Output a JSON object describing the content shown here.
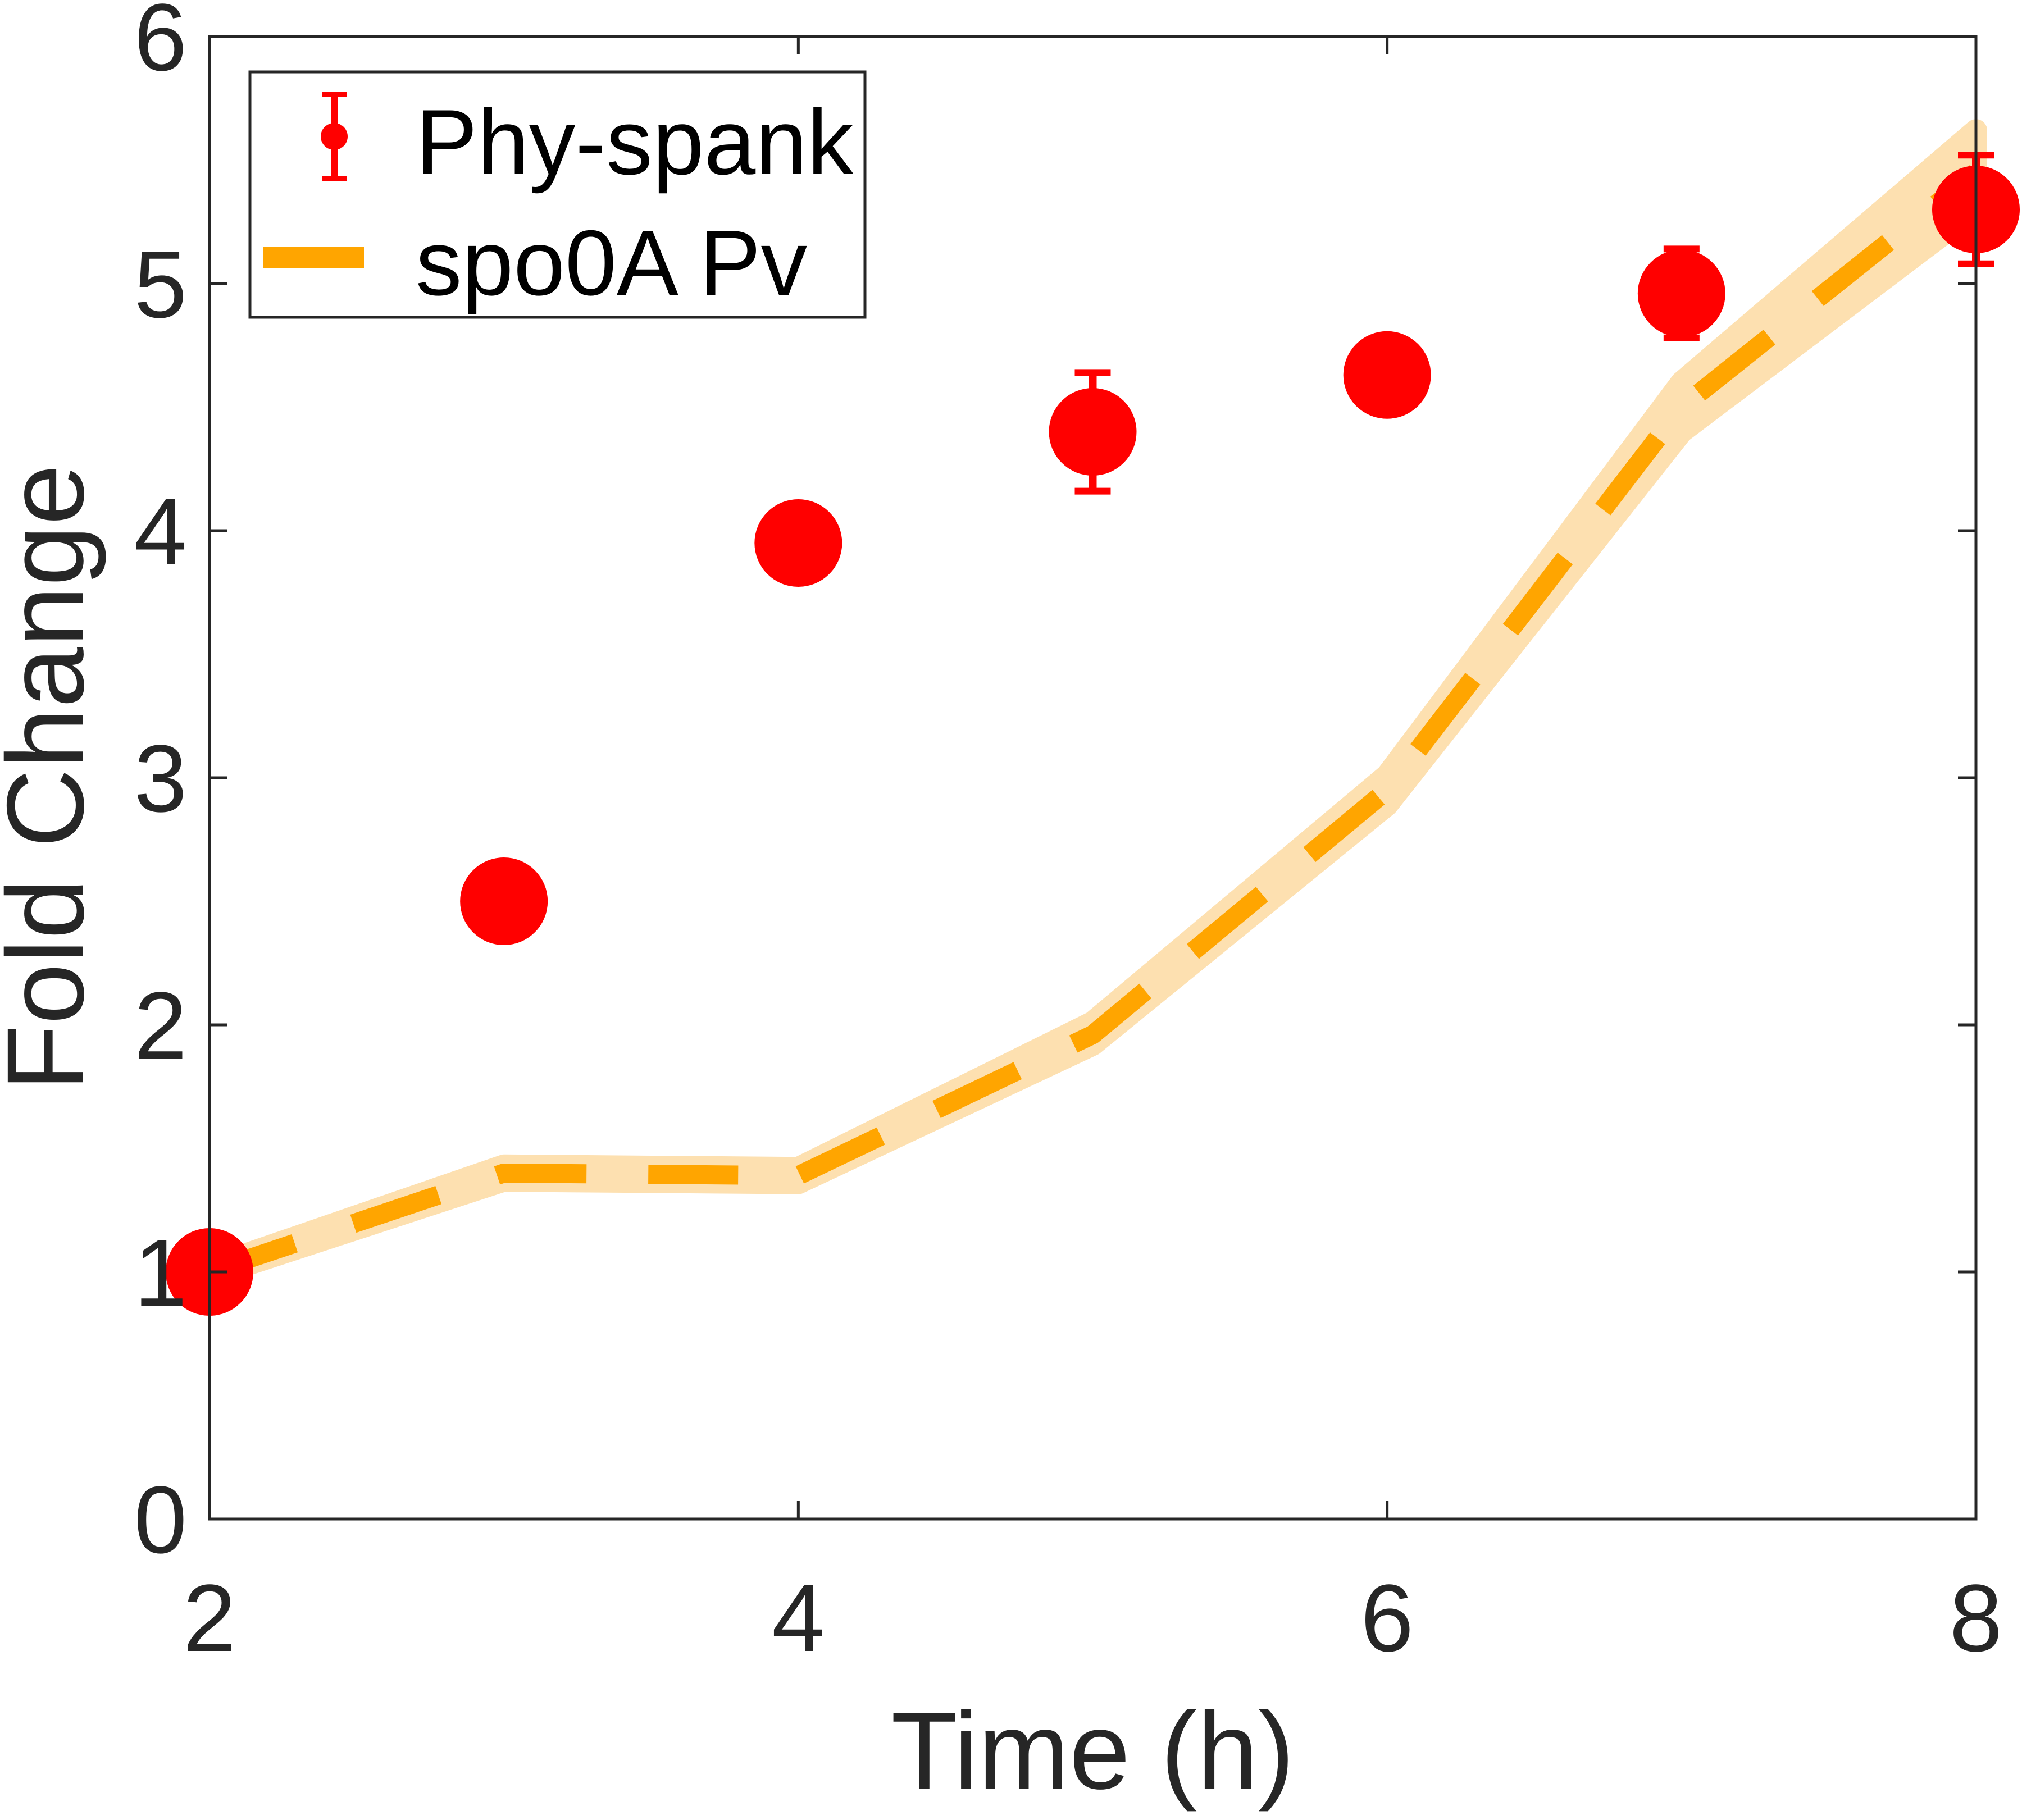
{
  "chart_data": {
    "type": "line",
    "title": "",
    "xlabel": "Time (h)",
    "ylabel": "Fold Change",
    "xlim": [
      2,
      8
    ],
    "ylim": [
      0,
      6
    ],
    "xticks": [
      2,
      4,
      6,
      8
    ],
    "yticks": [
      0,
      1,
      2,
      3,
      4,
      5,
      6
    ],
    "grid": false,
    "legend_position": "top-left",
    "series": [
      {
        "name": "Phy-spank",
        "kind": "scatter-errorbar",
        "color": "#ff0000",
        "x": [
          2,
          3,
          4,
          5,
          6,
          7,
          8
        ],
        "y": [
          1.0,
          2.5,
          3.95,
          4.4,
          4.63,
          4.96,
          5.3
        ],
        "err": [
          0.04,
          0.05,
          0.05,
          0.24,
          0.05,
          0.18,
          0.22
        ]
      },
      {
        "name": "spo0A Pv",
        "kind": "dashed-line-band",
        "color": "#ffa500",
        "band_color": "#fde0b0",
        "x": [
          2,
          3,
          4,
          5,
          6,
          7,
          8
        ],
        "y": [
          1.0,
          1.4,
          1.39,
          1.96,
          2.95,
          4.5,
          5.45
        ],
        "band_lower": [
          0.98,
          1.37,
          1.36,
          1.92,
          2.89,
          4.4,
          5.3
        ],
        "band_upper": [
          1.02,
          1.43,
          1.42,
          2.01,
          3.01,
          4.6,
          5.62
        ]
      }
    ]
  }
}
